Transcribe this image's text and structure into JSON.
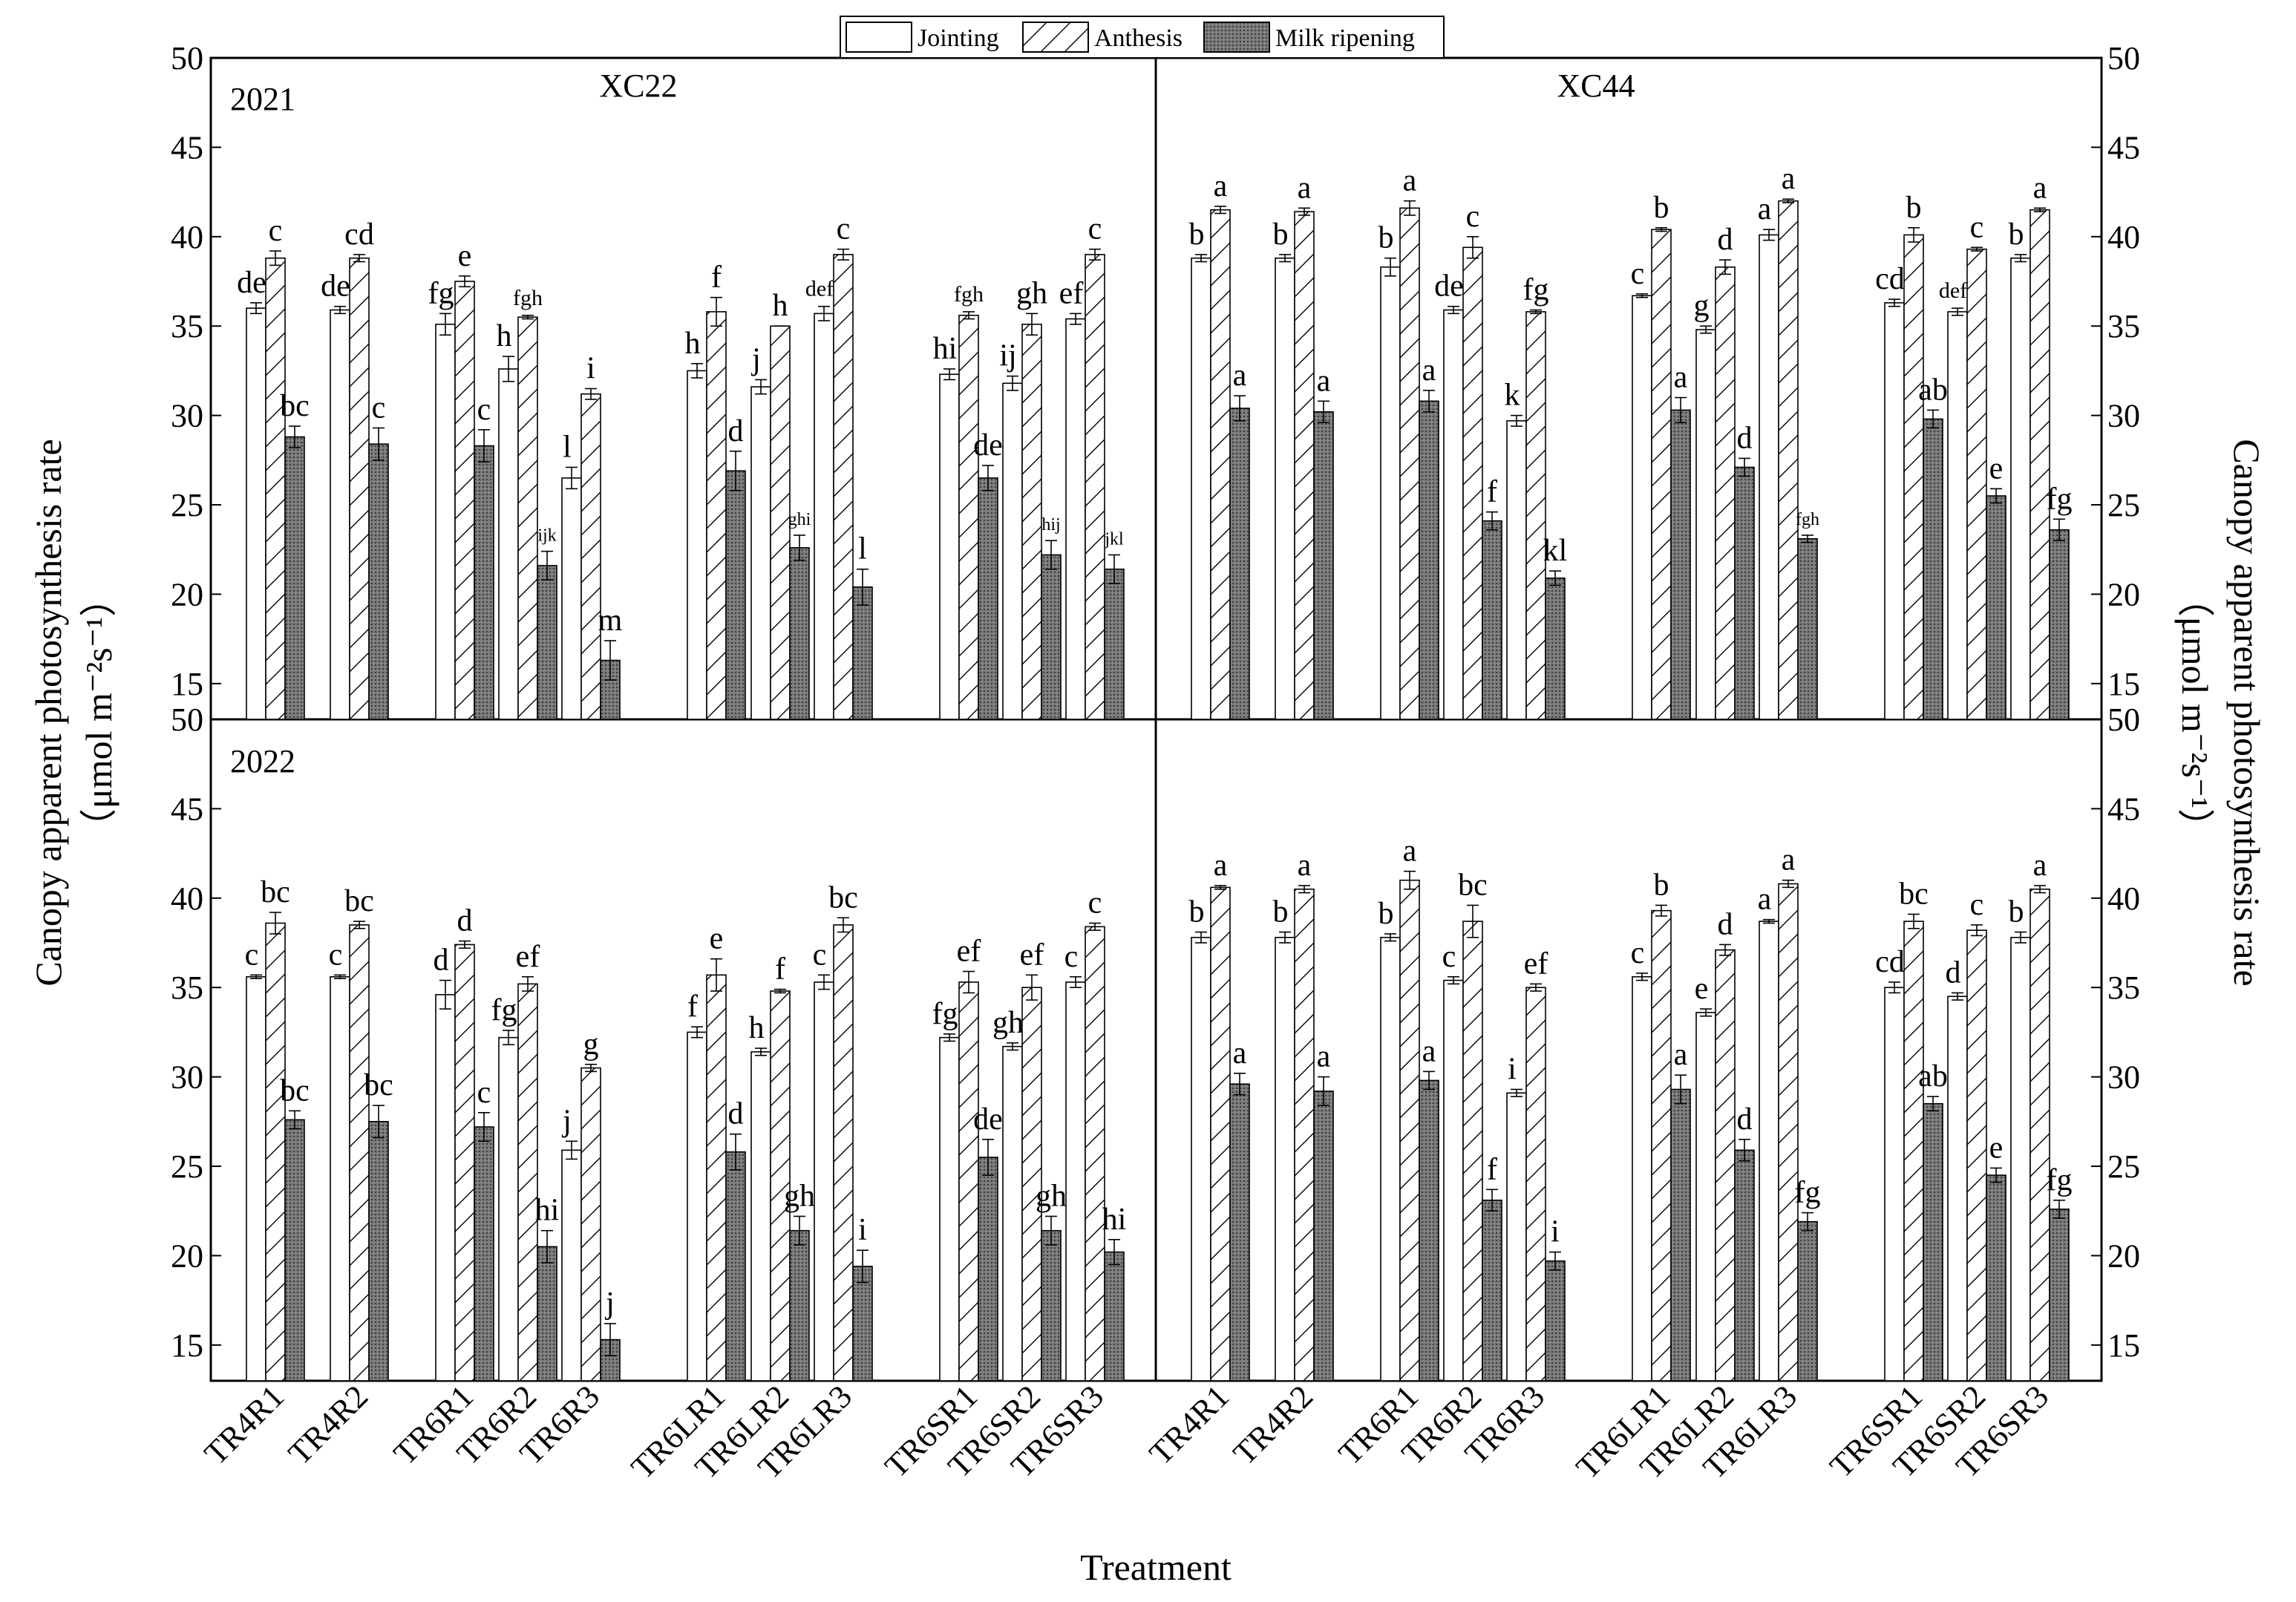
{
  "chart_data": {
    "type": "bar",
    "ylabel_line1": "Canopy apparent photosynthesis rate",
    "ylabel_line2_left": "（μmol m⁻²s⁻¹）",
    "ylabel_line2_right": "（μmol m⁻²s⁻¹）",
    "xlabel": "Treatment",
    "ylim": [
      13,
      50
    ],
    "yticks": [
      15,
      20,
      25,
      30,
      35,
      40,
      45,
      50
    ],
    "legend": {
      "position": "top-center",
      "entries": [
        "Jointing",
        "Anthesis",
        "Milk ripening"
      ]
    },
    "series": [
      "Jointing",
      "Anthesis",
      "Milk ripening"
    ],
    "year_labels": [
      "2021",
      "2022"
    ],
    "variety_labels": [
      "XC22",
      "XC44"
    ],
    "groups": [
      {
        "name": "TR4",
        "categories": [
          "TR4R1",
          "TR4R2"
        ]
      },
      {
        "name": "TR6",
        "categories": [
          "TR6R1",
          "TR6R2",
          "TR6R3"
        ]
      },
      {
        "name": "TR6L",
        "categories": [
          "TR6LR1",
          "TR6LR2",
          "TR6LR3"
        ]
      },
      {
        "name": "TR6S",
        "categories": [
          "TR6SR1",
          "TR6SR2",
          "TR6SR3"
        ]
      }
    ],
    "panels": [
      {
        "year": "2021",
        "variety": "XC22",
        "values": [
          [
            36,
            38.8,
            28.8
          ],
          [
            35.9,
            38.8,
            28.4
          ],
          [
            35.1,
            37.5,
            28.3
          ],
          [
            32.6,
            35.5,
            21.6
          ],
          [
            26.5,
            31.2,
            16.3
          ],
          [
            32.5,
            35.8,
            26.9
          ],
          [
            31.6,
            35,
            22.6
          ],
          [
            35.7,
            39,
            20.4
          ],
          [
            32.3,
            35.6,
            26.5
          ],
          [
            31.8,
            35.1,
            22.2
          ],
          [
            35.4,
            39,
            21.4
          ]
        ],
        "errors": [
          [
            0.3,
            0.4,
            0.6
          ],
          [
            0.2,
            0.2,
            0.9
          ],
          [
            0.6,
            0.3,
            0.9
          ],
          [
            0.7,
            0.1,
            0.8
          ],
          [
            0.6,
            0.3,
            1.1
          ],
          [
            0.4,
            0.8,
            1.1
          ],
          [
            0.4,
            0,
            0.7
          ],
          [
            0.4,
            0.3,
            1
          ],
          [
            0.3,
            0.2,
            0.7
          ],
          [
            0.4,
            0.6,
            0.8
          ],
          [
            0.3,
            0.3,
            0.8
          ]
        ],
        "letters": [
          [
            "de",
            "c",
            "bc"
          ],
          [
            "de",
            "cd",
            "c"
          ],
          [
            "fg",
            "e",
            "c"
          ],
          [
            "h",
            "fgh",
            "ijk"
          ],
          [
            "l",
            "i",
            "m"
          ],
          [
            "h",
            "f",
            "d"
          ],
          [
            "j",
            "h",
            "ghi"
          ],
          [
            "def",
            "c",
            "l"
          ],
          [
            "hi",
            "fgh",
            "de"
          ],
          [
            "ij",
            "gh",
            "hij"
          ],
          [
            "ef",
            "c",
            "jkl"
          ]
        ]
      },
      {
        "year": "2021",
        "variety": "XC44",
        "values": [
          [
            38.8,
            41.5,
            30.4
          ],
          [
            38.8,
            41.4,
            30.2
          ],
          [
            38.3,
            41.6,
            30.8
          ],
          [
            35.9,
            39.4,
            24.1
          ],
          [
            29.7,
            35.8,
            20.9
          ],
          [
            36.7,
            40.4,
            30.3
          ],
          [
            34.8,
            38.3,
            27.1
          ],
          [
            40.1,
            42,
            23.1
          ],
          [
            36.3,
            40.1,
            29.8
          ],
          [
            35.8,
            39.3,
            25.5
          ],
          [
            38.8,
            41.5,
            23.6
          ]
        ],
        "errors": [
          [
            0.2,
            0.2,
            0.7
          ],
          [
            0.2,
            0.2,
            0.6
          ],
          [
            0.5,
            0.4,
            0.6
          ],
          [
            0.2,
            0.6,
            0.5
          ],
          [
            0.3,
            0.1,
            0.4
          ],
          [
            0.1,
            0.1,
            0.7
          ],
          [
            0.2,
            0.4,
            0.5
          ],
          [
            0.3,
            0.1,
            0.2
          ],
          [
            0.2,
            0.4,
            0.5
          ],
          [
            0.2,
            0.1,
            0.4
          ],
          [
            0.2,
            0.1,
            0.6
          ]
        ],
        "letters": [
          [
            "b",
            "a",
            "a"
          ],
          [
            "b",
            "a",
            "a"
          ],
          [
            "b",
            "a",
            "a"
          ],
          [
            "de",
            "c",
            "f"
          ],
          [
            "k",
            "fg",
            "kl"
          ],
          [
            "c",
            "b",
            "a"
          ],
          [
            "g",
            "d",
            "d"
          ],
          [
            "a",
            "a",
            "fgh"
          ],
          [
            "cd",
            "b",
            "ab"
          ],
          [
            "def",
            "c",
            "e"
          ],
          [
            "b",
            "a",
            "fg"
          ]
        ]
      },
      {
        "year": "2022",
        "variety": "XC22",
        "values": [
          [
            35.6,
            38.6,
            27.6
          ],
          [
            35.6,
            38.5,
            27.5
          ],
          [
            34.6,
            37.4,
            27.2
          ],
          [
            32.2,
            35.2,
            20.5
          ],
          [
            25.9,
            30.5,
            15.3
          ],
          [
            32.5,
            35.7,
            25.8
          ],
          [
            31.4,
            34.8,
            21.4
          ],
          [
            35.3,
            38.5,
            19.4
          ],
          [
            32.2,
            35.3,
            25.5
          ],
          [
            31.7,
            35,
            21.4
          ],
          [
            35.3,
            38.4,
            20.2
          ]
        ],
        "errors": [
          [
            0.1,
            0.6,
            0.5
          ],
          [
            0.1,
            0.2,
            0.9
          ],
          [
            0.8,
            0.2,
            0.8
          ],
          [
            0.4,
            0.4,
            0.9
          ],
          [
            0.5,
            0.2,
            0.9
          ],
          [
            0.3,
            0.9,
            1
          ],
          [
            0.2,
            0.1,
            0.8
          ],
          [
            0.4,
            0.4,
            0.9
          ],
          [
            0.2,
            0.6,
            1
          ],
          [
            0.2,
            0.7,
            0.8
          ],
          [
            0.3,
            0.2,
            0.7
          ]
        ],
        "letters": [
          [
            "c",
            "bc",
            "bc"
          ],
          [
            "c",
            "bc",
            "bc"
          ],
          [
            "d",
            "d",
            "c"
          ],
          [
            "fg",
            "ef",
            "hi"
          ],
          [
            "j",
            "g",
            "j"
          ],
          [
            "f",
            "e",
            "d"
          ],
          [
            "h",
            "f",
            "gh"
          ],
          [
            "c",
            "bc",
            "i"
          ],
          [
            "fg",
            "ef",
            "de"
          ],
          [
            "gh",
            "ef",
            "gh"
          ],
          [
            "c",
            "c",
            "hi"
          ]
        ]
      },
      {
        "year": "2022",
        "variety": "XC44",
        "values": [
          [
            37.8,
            40.6,
            29.6
          ],
          [
            37.8,
            40.5,
            29.2
          ],
          [
            37.8,
            41,
            29.8
          ],
          [
            35.4,
            38.7,
            23.1
          ],
          [
            29.1,
            35,
            19.7
          ],
          [
            35.6,
            39.3,
            29.3
          ],
          [
            33.6,
            37.1,
            25.9
          ],
          [
            38.7,
            40.8,
            21.9
          ],
          [
            35,
            38.7,
            28.5
          ],
          [
            34.5,
            38.2,
            24.5
          ],
          [
            37.8,
            40.5,
            22.6
          ]
        ],
        "errors": [
          [
            0.3,
            0.1,
            0.6
          ],
          [
            0.3,
            0.2,
            0.8
          ],
          [
            0.2,
            0.5,
            0.5
          ],
          [
            0.2,
            0.9,
            0.6
          ],
          [
            0.2,
            0.2,
            0.5
          ],
          [
            0.2,
            0.3,
            0.8
          ],
          [
            0.2,
            0.3,
            0.6
          ],
          [
            0.1,
            0.2,
            0.5
          ],
          [
            0.3,
            0.4,
            0.4
          ],
          [
            0.2,
            0.3,
            0.4
          ],
          [
            0.3,
            0.2,
            0.5
          ]
        ],
        "letters": [
          [
            "b",
            "a",
            "a"
          ],
          [
            "b",
            "a",
            "a"
          ],
          [
            "b",
            "a",
            "a"
          ],
          [
            "c",
            "bc",
            "f"
          ],
          [
            "i",
            "ef",
            "i"
          ],
          [
            "c",
            "b",
            "a"
          ],
          [
            "e",
            "d",
            "d"
          ],
          [
            "a",
            "a",
            "fg"
          ],
          [
            "cd",
            "bc",
            "ab"
          ],
          [
            "d",
            "c",
            "e"
          ],
          [
            "b",
            "a",
            "fg"
          ]
        ]
      }
    ]
  }
}
